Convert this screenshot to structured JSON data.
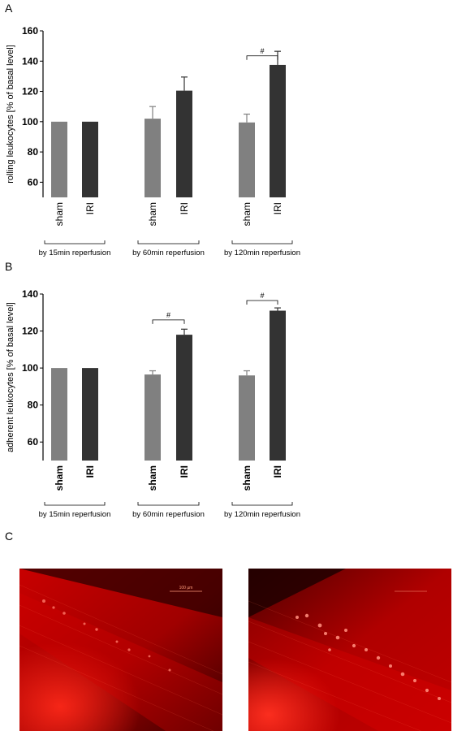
{
  "panels": {
    "a": "A",
    "b": "B",
    "c": "C"
  },
  "chart_data": [
    {
      "type": "bar",
      "ylabel": "rolling leukocytes [% of basal level]",
      "ylim": [
        50,
        160
      ],
      "yticks": [
        60,
        80,
        100,
        120,
        140,
        160
      ],
      "tick_style": "normal",
      "groups": [
        "by 15min reperfusion",
        "by 60min reperfusion",
        "by 120min reperfusion"
      ],
      "categories": [
        "sham",
        "IRI",
        "sham",
        "IRI",
        "sham",
        "IRI"
      ],
      "values": [
        100,
        100,
        102,
        120.5,
        99.5,
        137.5
      ],
      "errors": [
        0,
        0,
        8,
        9,
        5.5,
        9
      ],
      "colors": [
        "#808080",
        "#333333",
        "#808080",
        "#333333",
        "#808080",
        "#333333"
      ],
      "significance": [
        {
          "from": 4,
          "to": 5,
          "label": "#",
          "y": 143.5
        }
      ]
    },
    {
      "type": "bar",
      "ylabel": "adherent leukocytes [% of basal level]",
      "ylim": [
        50,
        140
      ],
      "yticks": [
        60,
        80,
        100,
        120,
        140
      ],
      "tick_style": "bold",
      "groups": [
        "by 15min reperfusion",
        "by 60min reperfusion",
        "by 120min reperfusion"
      ],
      "categories": [
        "sham",
        "IRI",
        "sham",
        "IRI",
        "sham",
        "IRI"
      ],
      "values": [
        100,
        100,
        96.5,
        118,
        96,
        131
      ],
      "errors": [
        0,
        0,
        2,
        3,
        2.5,
        1.5
      ],
      "colors": [
        "#808080",
        "#333333",
        "#808080",
        "#333333",
        "#808080",
        "#333333"
      ],
      "significance": [
        {
          "from": 2,
          "to": 3,
          "label": "#",
          "y": 126
        },
        {
          "from": 4,
          "to": 5,
          "label": "#",
          "y": 136.5
        }
      ]
    }
  ],
  "micrographs": {
    "scale_label": "100 µm",
    "fluorescence_color": "#e00000"
  }
}
